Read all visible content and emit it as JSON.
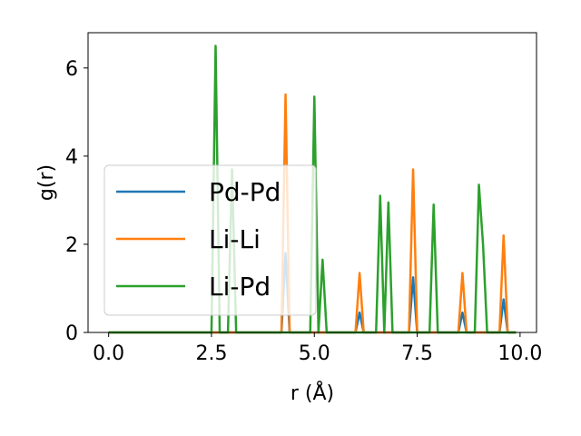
{
  "chart_data": {
    "type": "line",
    "xlabel": "r (Å)",
    "ylabel": "g(r)",
    "xlim": [
      -0.5,
      10.4
    ],
    "ylim": [
      0,
      6.8
    ],
    "xticks": [
      0.0,
      2.5,
      5.0,
      7.5,
      10.0
    ],
    "xtick_labels": [
      "0.0",
      "2.5",
      "5.0",
      "7.5",
      "10.0"
    ],
    "yticks": [
      0,
      2,
      4,
      6
    ],
    "ytick_labels": [
      "0",
      "2",
      "4",
      "6"
    ],
    "grid": false,
    "legend_position": "center-left",
    "series": [
      {
        "name": "Pd-Pd",
        "color": "#1f77b4",
        "points": [
          [
            0.0,
            0
          ],
          [
            4.2,
            0
          ],
          [
            4.3,
            1.8
          ],
          [
            4.4,
            0
          ],
          [
            6.0,
            0
          ],
          [
            6.1,
            0.45
          ],
          [
            6.2,
            0
          ],
          [
            7.3,
            0
          ],
          [
            7.4,
            1.25
          ],
          [
            7.5,
            0
          ],
          [
            8.5,
            0
          ],
          [
            8.6,
            0.45
          ],
          [
            8.7,
            0
          ],
          [
            9.5,
            0
          ],
          [
            9.6,
            0.75
          ],
          [
            9.7,
            0
          ],
          [
            9.9,
            0
          ]
        ]
      },
      {
        "name": "Li-Li",
        "color": "#ff7f0e",
        "points": [
          [
            0.0,
            0
          ],
          [
            4.2,
            0
          ],
          [
            4.3,
            5.4
          ],
          [
            4.4,
            0
          ],
          [
            6.0,
            0
          ],
          [
            6.1,
            1.35
          ],
          [
            6.2,
            0
          ],
          [
            7.3,
            0
          ],
          [
            7.4,
            3.7
          ],
          [
            7.5,
            0
          ],
          [
            8.5,
            0
          ],
          [
            8.6,
            1.35
          ],
          [
            8.7,
            0
          ],
          [
            9.5,
            0
          ],
          [
            9.6,
            2.2
          ],
          [
            9.7,
            0
          ],
          [
            9.9,
            0
          ]
        ]
      },
      {
        "name": "Li-Pd",
        "color": "#2ca02c",
        "points": [
          [
            0.0,
            0
          ],
          [
            2.5,
            0
          ],
          [
            2.6,
            6.5
          ],
          [
            2.7,
            0
          ],
          [
            2.9,
            0
          ],
          [
            3.0,
            3.7
          ],
          [
            3.1,
            0
          ],
          [
            4.9,
            0
          ],
          [
            5.0,
            5.35
          ],
          [
            5.1,
            0
          ],
          [
            5.2,
            1.65
          ],
          [
            5.3,
            0
          ],
          [
            6.5,
            0
          ],
          [
            6.6,
            3.1
          ],
          [
            6.7,
            0
          ],
          [
            6.8,
            2.95
          ],
          [
            6.9,
            0
          ],
          [
            7.8,
            0
          ],
          [
            7.9,
            2.9
          ],
          [
            8.0,
            0
          ],
          [
            8.9,
            0
          ],
          [
            9.0,
            3.35
          ],
          [
            9.1,
            2.0
          ],
          [
            9.2,
            0
          ],
          [
            9.9,
            0
          ]
        ]
      }
    ]
  }
}
